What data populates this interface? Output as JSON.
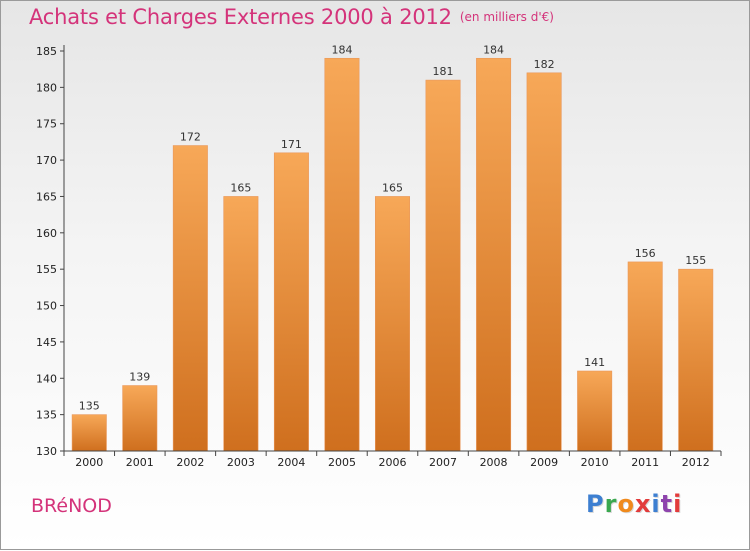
{
  "header": {
    "title": "Achats et Charges Externes 2000 à 2012",
    "subtitle": "(en milliers d'€)"
  },
  "footer": {
    "commune": "BRéNOD",
    "logo_letters": [
      "P",
      "r",
      "o",
      "x",
      "i",
      "t",
      "i"
    ],
    "logo_colors": [
      "#3d7fd1",
      "#3aa84f",
      "#f08a1c",
      "#e23b3b",
      "#3d7fd1",
      "#8e44ad",
      "#e23b3b"
    ]
  },
  "chart_data": {
    "type": "bar",
    "title": "Achats et Charges Externes 2000 à 2012",
    "subtitle": "(en milliers d'€)",
    "categories": [
      "2000",
      "2001",
      "2002",
      "2003",
      "2004",
      "2005",
      "2006",
      "2007",
      "2008",
      "2009",
      "2010",
      "2011",
      "2012"
    ],
    "values": [
      135,
      139,
      172,
      165,
      171,
      184,
      165,
      181,
      184,
      182,
      141,
      156,
      155
    ],
    "ylim": [
      130,
      185
    ],
    "yticks": [
      130,
      135,
      140,
      145,
      150,
      155,
      160,
      165,
      170,
      175,
      180,
      185
    ],
    "grid": false,
    "colors": {
      "bar_light": "#f7a858",
      "bar_dark": "#cf6f1e",
      "axis": "#444444"
    }
  }
}
